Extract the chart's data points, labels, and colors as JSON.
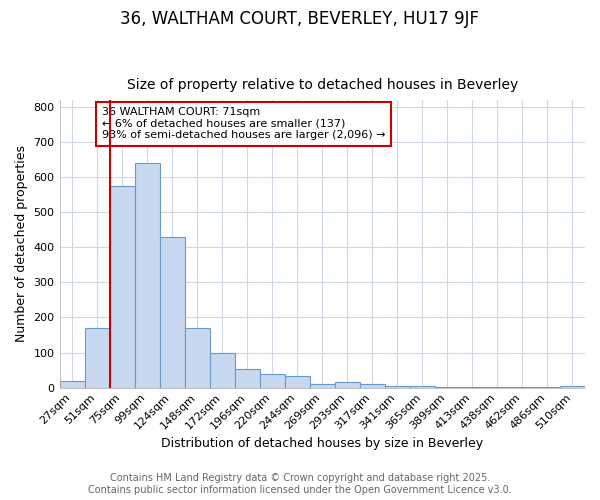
{
  "title1": "36, WALTHAM COURT, BEVERLEY, HU17 9JF",
  "title2": "Size of property relative to detached houses in Beverley",
  "xlabel": "Distribution of detached houses by size in Beverley",
  "ylabel": "Number of detached properties",
  "categories": [
    "27sqm",
    "51sqm",
    "75sqm",
    "99sqm",
    "124sqm",
    "148sqm",
    "172sqm",
    "196sqm",
    "220sqm",
    "244sqm",
    "269sqm",
    "293sqm",
    "317sqm",
    "341sqm",
    "365sqm",
    "389sqm",
    "413sqm",
    "438sqm",
    "462sqm",
    "486sqm",
    "510sqm"
  ],
  "values": [
    20,
    170,
    575,
    640,
    430,
    170,
    100,
    52,
    40,
    33,
    10,
    15,
    10,
    5,
    4,
    3,
    3,
    2,
    1,
    1,
    5
  ],
  "bar_color": "#c8d8f0",
  "bar_edge_color": "#6699cc",
  "vline_x": 2.0,
  "vline_color": "#cc0000",
  "annotation_title": "36 WALTHAM COURT: 71sqm",
  "annotation_line2": "← 6% of detached houses are smaller (137)",
  "annotation_line3": "93% of semi-detached houses are larger (2,096) →",
  "annotation_box_color": "#cc0000",
  "ylim": [
    0,
    820
  ],
  "yticks": [
    0,
    100,
    200,
    300,
    400,
    500,
    600,
    700,
    800
  ],
  "footer_line1": "Contains HM Land Registry data © Crown copyright and database right 2025.",
  "footer_line2": "Contains public sector information licensed under the Open Government Licence v3.0.",
  "background_color": "#ffffff",
  "grid_color": "#d0d8e8",
  "title_fontsize": 12,
  "subtitle_fontsize": 10,
  "axis_label_fontsize": 9,
  "tick_fontsize": 8,
  "footer_fontsize": 7
}
